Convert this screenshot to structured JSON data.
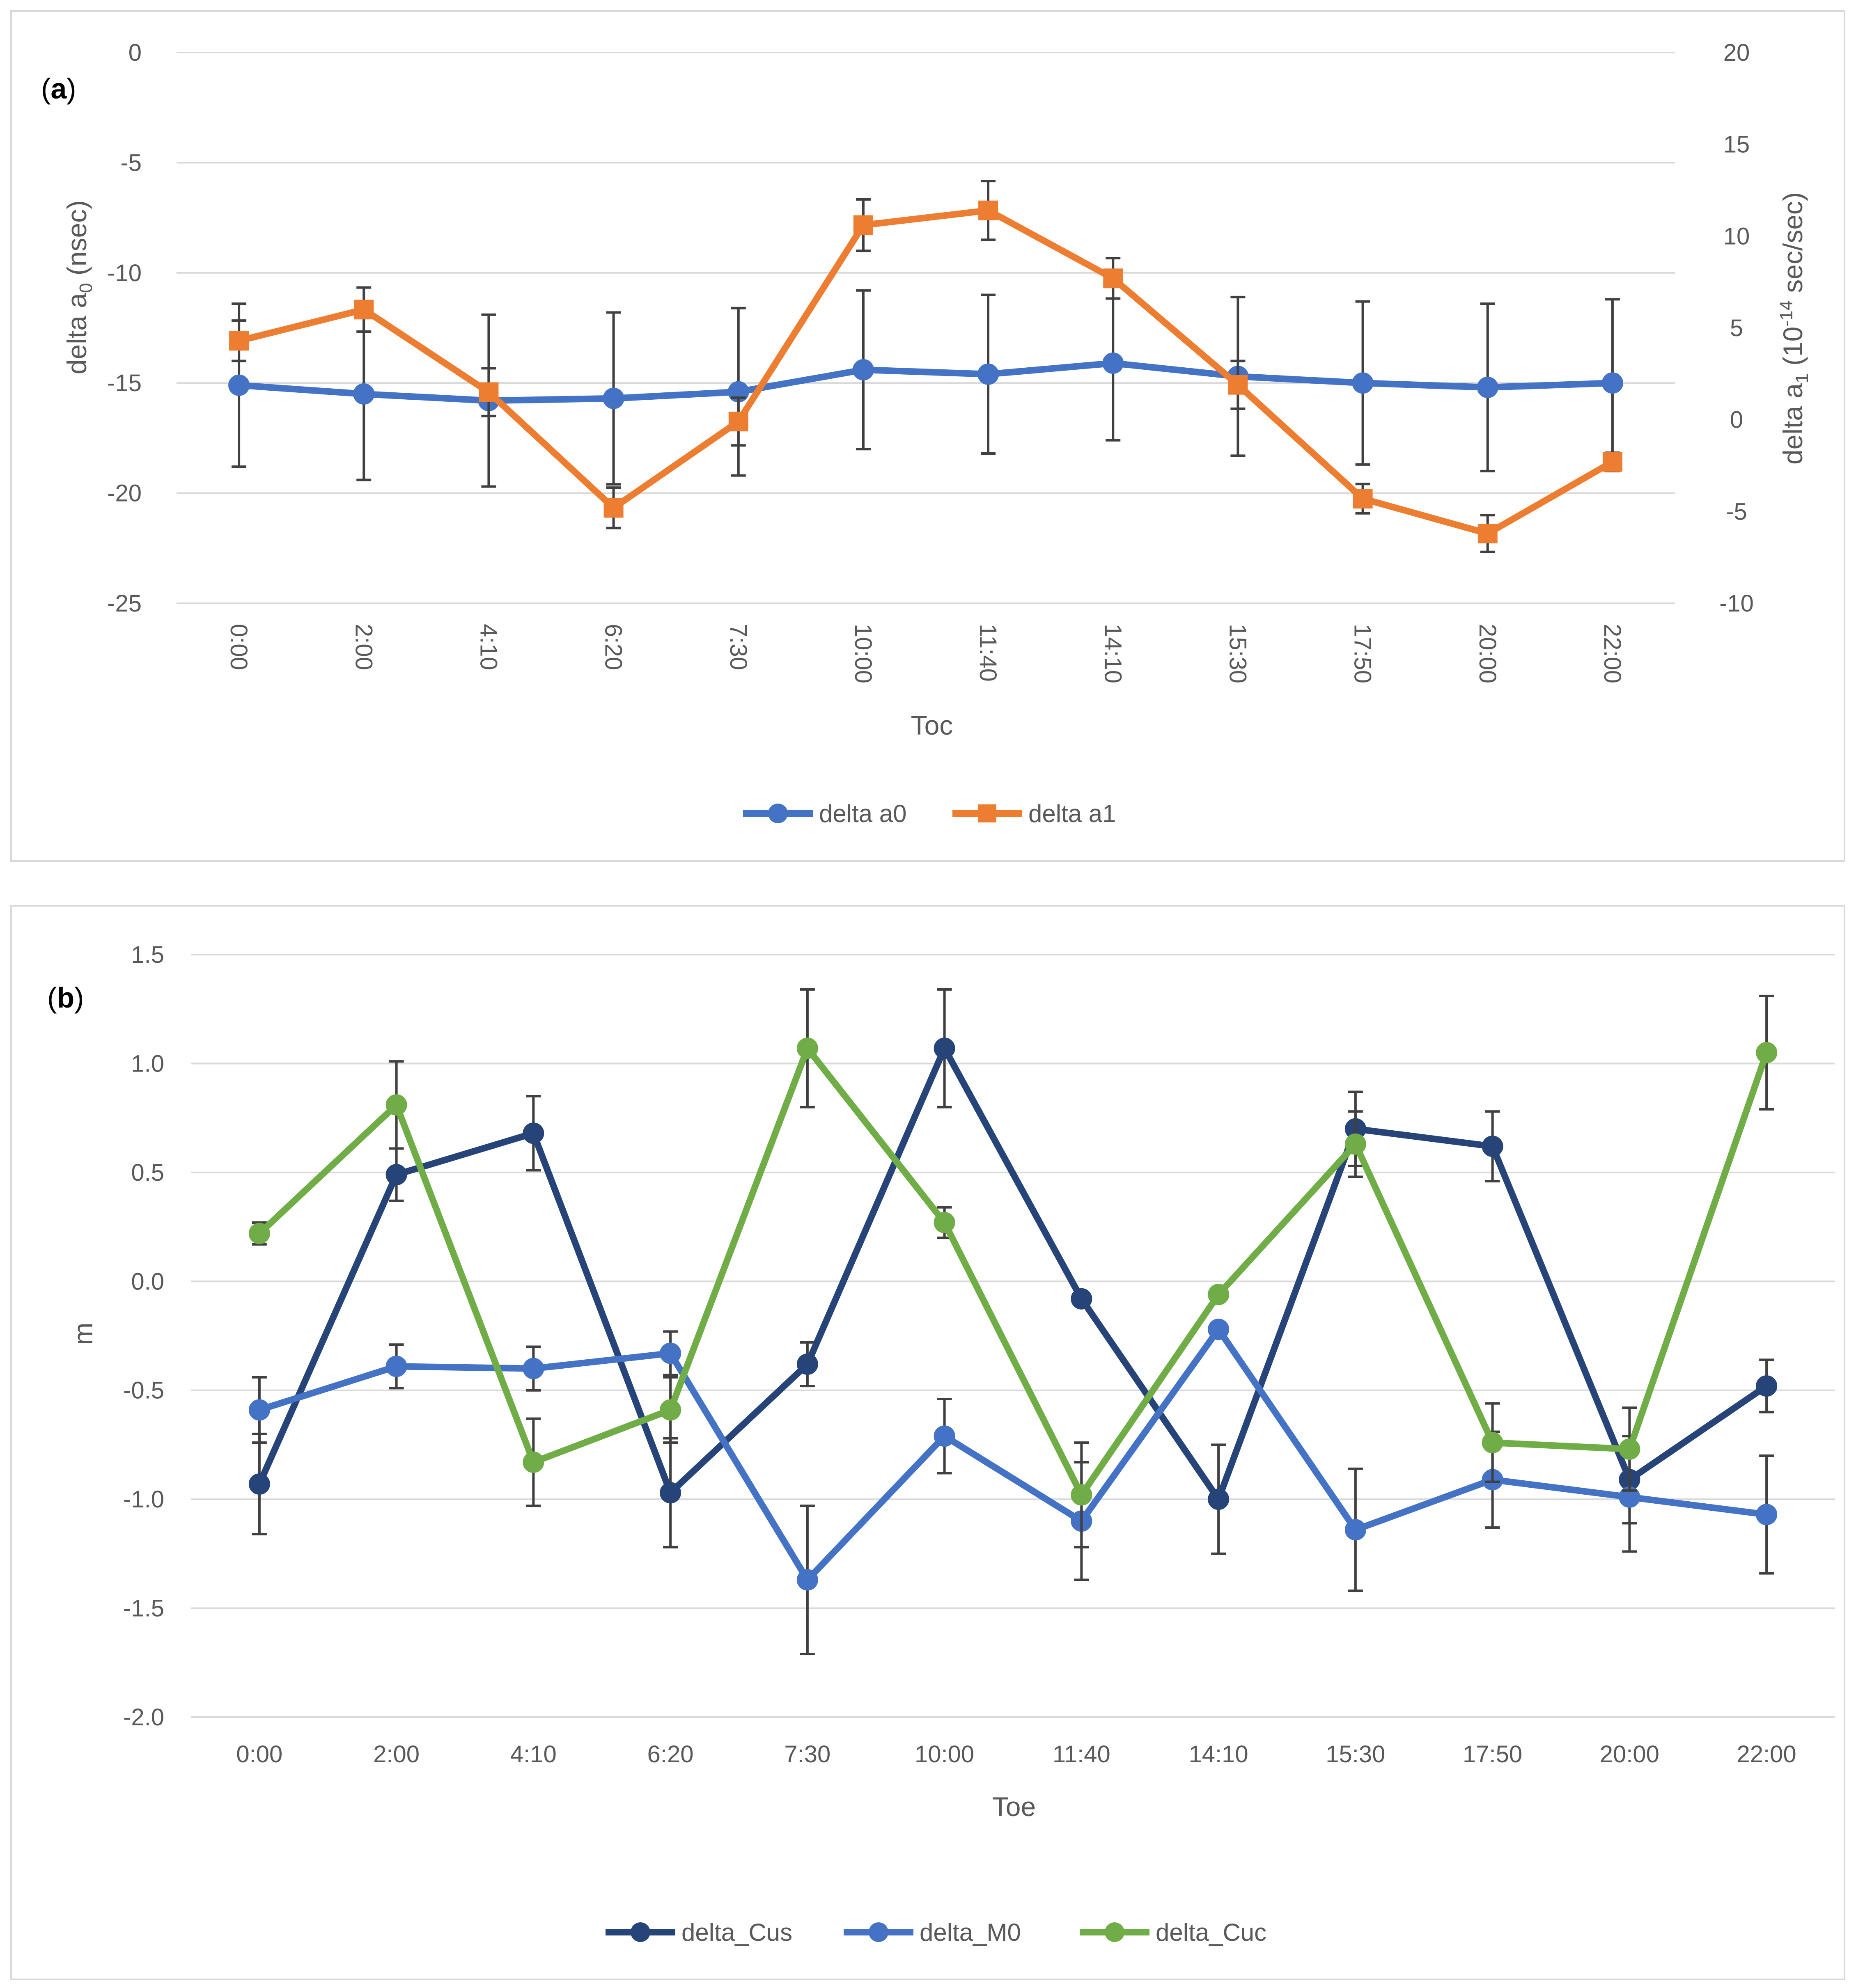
{
  "colors": {
    "delta_a0": "#4472C4",
    "delta_a1": "#ED7D31",
    "delta_Cus": "#264478",
    "delta_M0": "#4472C4",
    "delta_Cuc": "#70AD47",
    "grid": "#D9D9D9",
    "errorbar": "#404040"
  },
  "chart_data": [
    {
      "type": "line",
      "panel_label_letter": "a",
      "xlabel": "Toc",
      "ylabel_left": {
        "base": "delta a",
        "sub": "0",
        "unit": " (nsec)"
      },
      "ylabel_right": {
        "base": "delta a",
        "sub": "1",
        "unit_pre": " (10",
        "sup": "-14",
        "unit_post": " sec/sec)"
      },
      "categories": [
        "0:00",
        "2:00",
        "4:10",
        "6:20",
        "7:30",
        "10:00",
        "11:40",
        "14:10",
        "15:30",
        "17:50",
        "20:00",
        "22:00"
      ],
      "ylim_left": [
        -25,
        0
      ],
      "yticks_left": [
        "0",
        "-5",
        "-10",
        "-15",
        "-20",
        "-25"
      ],
      "ylim_right": [
        -10,
        20
      ],
      "yticks_right": [
        "20",
        "15",
        "10",
        "5",
        "0",
        "-5",
        "-10"
      ],
      "grid": true,
      "legend_position": "bottom",
      "series": [
        {
          "name": "delta a0",
          "axis": "left",
          "marker": "circle",
          "values": [
            -15.1,
            -15.5,
            -15.8,
            -15.7,
            -15.4,
            -14.4,
            -14.6,
            -14.1,
            -14.7,
            -15.0,
            -15.2,
            -15.0
          ],
          "error": [
            3.7,
            3.9,
            3.9,
            3.9,
            3.8,
            3.6,
            3.6,
            3.5,
            3.6,
            3.7,
            3.8,
            3.8
          ]
        },
        {
          "name": "delta a1",
          "axis": "right",
          "marker": "square",
          "values": [
            4.3,
            6.0,
            1.5,
            -4.8,
            -0.1,
            10.6,
            11.4,
            7.7,
            1.9,
            -4.3,
            -6.2,
            -2.3
          ],
          "error": [
            1.1,
            1.2,
            1.3,
            1.1,
            1.3,
            1.4,
            1.6,
            1.1,
            1.3,
            0.8,
            1.0,
            0.5
          ]
        }
      ]
    },
    {
      "type": "line",
      "panel_label_letter": "b",
      "xlabel": "Toe",
      "ylabel": "m",
      "categories": [
        "0:00",
        "2:00",
        "4:10",
        "6:20",
        "7:30",
        "10:00",
        "11:40",
        "14:10",
        "15:30",
        "17:50",
        "20:00",
        "22:00"
      ],
      "ylim": [
        -2.0,
        1.5
      ],
      "yticks": [
        "1.5",
        "1.0",
        "0.5",
        "0.0",
        "-0.5",
        "-1.0",
        "-1.5",
        "-2.0"
      ],
      "grid": true,
      "legend_position": "bottom",
      "series": [
        {
          "name": "delta_Cus",
          "marker": "circle",
          "values": [
            -0.93,
            0.49,
            0.68,
            -0.97,
            -0.38,
            1.07,
            -0.08,
            -1.0,
            0.7,
            0.62,
            -0.91,
            -0.48
          ],
          "error": [
            0.23,
            0.12,
            0.17,
            0.25,
            0.1,
            0.27,
            null,
            0.25,
            0.17,
            0.16,
            0.2,
            0.12
          ]
        },
        {
          "name": "delta_M0",
          "marker": "circle",
          "values": [
            -0.59,
            -0.39,
            -0.4,
            -0.33,
            -1.37,
            -0.71,
            -1.1,
            -0.22,
            -1.14,
            -0.91,
            -0.99,
            -1.07
          ],
          "error": [
            0.15,
            0.1,
            0.1,
            0.1,
            0.34,
            0.17,
            0.27,
            0.03,
            0.28,
            0.22,
            0.25,
            0.27
          ]
        },
        {
          "name": "delta_Cuc",
          "marker": "circle",
          "values": [
            0.22,
            0.81,
            -0.83,
            -0.59,
            1.07,
            0.27,
            -0.98,
            -0.06,
            0.63,
            -0.74,
            -0.77,
            1.05
          ],
          "error": [
            0.05,
            0.2,
            0.2,
            0.15,
            0.27,
            0.07,
            0.24,
            null,
            0.15,
            0.18,
            0.19,
            0.26
          ]
        }
      ]
    }
  ]
}
